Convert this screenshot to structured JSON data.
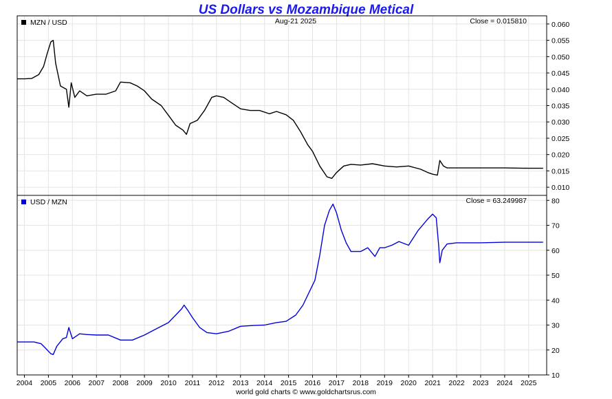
{
  "title": "US Dollars vs Mozambique Metical",
  "date": "Aug-21  2025",
  "footer": "world gold charts © www.goldchartsrus.com",
  "colors": {
    "title": "#1a1aee",
    "series_top": "#000000",
    "series_bottom": "#0000dd",
    "grid": "#e4e4e4"
  },
  "chart_data": [
    {
      "type": "line",
      "legend": "MZN / USD",
      "close_label": "Close = 0.015810",
      "ylim": [
        0.0075,
        0.0625
      ],
      "yticks": [
        "0.060",
        "0.055",
        "0.050",
        "0.045",
        "0.040",
        "0.035",
        "0.030",
        "0.025",
        "0.020",
        "0.015",
        "0.010"
      ],
      "x": [
        2003.7,
        2004.0,
        2004.3,
        2004.6,
        2004.8,
        2004.95,
        2005.1,
        2005.2,
        2005.3,
        2005.5,
        2005.75,
        2005.85,
        2005.95,
        2006.1,
        2006.3,
        2006.6,
        2007.0,
        2007.4,
        2007.8,
        2008.0,
        2008.4,
        2008.7,
        2009.0,
        2009.3,
        2009.7,
        2010.0,
        2010.3,
        2010.6,
        2010.75,
        2010.9,
        2011.2,
        2011.5,
        2011.8,
        2012.0,
        2012.3,
        2012.6,
        2013.0,
        2013.4,
        2013.8,
        2014.2,
        2014.5,
        2014.9,
        2015.2,
        2015.5,
        2015.8,
        2016.0,
        2016.3,
        2016.6,
        2016.8,
        2017.0,
        2017.3,
        2017.6,
        2018.0,
        2018.5,
        2019.0,
        2019.5,
        2020.0,
        2020.5,
        2020.8,
        2021.0,
        2021.2,
        2021.3,
        2021.45,
        2021.6,
        2022.0,
        2023.0,
        2024.0,
        2025.0,
        2025.6
      ],
      "values": [
        0.0432,
        0.0432,
        0.0433,
        0.0445,
        0.047,
        0.051,
        0.0545,
        0.055,
        0.048,
        0.041,
        0.04,
        0.0345,
        0.042,
        0.0375,
        0.0395,
        0.038,
        0.0385,
        0.0385,
        0.0395,
        0.0422,
        0.042,
        0.041,
        0.0395,
        0.037,
        0.035,
        0.032,
        0.029,
        0.0275,
        0.0262,
        0.0295,
        0.0305,
        0.0335,
        0.0375,
        0.038,
        0.0375,
        0.036,
        0.034,
        0.0335,
        0.0335,
        0.0325,
        0.0332,
        0.0322,
        0.0305,
        0.027,
        0.023,
        0.021,
        0.0165,
        0.0132,
        0.0127,
        0.0145,
        0.0165,
        0.017,
        0.0168,
        0.0172,
        0.0165,
        0.0162,
        0.0165,
        0.0155,
        0.0145,
        0.014,
        0.0137,
        0.0182,
        0.0165,
        0.0159,
        0.0159,
        0.0159,
        0.0159,
        0.0158,
        0.0158
      ]
    },
    {
      "type": "line",
      "legend": "USD / MZN",
      "close_label": "Close = 63.249987",
      "ylim": [
        10,
        82
      ],
      "yticks": [
        "80",
        "70",
        "60",
        "50",
        "40",
        "30",
        "20",
        "10"
      ],
      "x": [
        2003.7,
        2004.0,
        2004.4,
        2004.7,
        2004.9,
        2005.1,
        2005.2,
        2005.35,
        2005.6,
        2005.75,
        2005.85,
        2006.0,
        2006.3,
        2006.6,
        2007.0,
        2007.5,
        2008.0,
        2008.5,
        2009.0,
        2009.5,
        2010.0,
        2010.3,
        2010.55,
        2010.65,
        2010.8,
        2011.0,
        2011.3,
        2011.6,
        2012.0,
        2012.5,
        2013.0,
        2013.5,
        2014.0,
        2014.5,
        2014.9,
        2015.3,
        2015.6,
        2015.9,
        2016.1,
        2016.3,
        2016.5,
        2016.7,
        2016.85,
        2017.0,
        2017.2,
        2017.4,
        2017.6,
        2018.0,
        2018.3,
        2018.6,
        2018.8,
        2019.0,
        2019.3,
        2019.6,
        2020.0,
        2020.4,
        2020.8,
        2021.0,
        2021.15,
        2021.25,
        2021.3,
        2021.4,
        2021.6,
        2022.0,
        2023.0,
        2024.0,
        2025.0,
        2025.6
      ],
      "values": [
        23.2,
        23.2,
        23.2,
        22.5,
        20.5,
        18.5,
        18.2,
        21.5,
        24.5,
        25.0,
        29.0,
        24.5,
        26.5,
        26.2,
        26.0,
        26.0,
        24.0,
        24.0,
        26.0,
        28.5,
        31.0,
        34.0,
        36.5,
        38.0,
        36.0,
        33.0,
        29.0,
        27.0,
        26.5,
        27.5,
        29.5,
        29.8,
        30.0,
        31.0,
        31.5,
        34.0,
        38.0,
        44.0,
        48.0,
        58.0,
        70.0,
        76.0,
        78.5,
        75.0,
        68.0,
        63.0,
        59.5,
        59.5,
        61.0,
        57.5,
        61.0,
        61.0,
        62.0,
        63.5,
        62.0,
        68.0,
        72.5,
        74.5,
        73.0,
        62.0,
        55.0,
        60.0,
        62.5,
        63.0,
        63.0,
        63.2,
        63.2,
        63.2
      ]
    }
  ],
  "x_ticks": [
    "2004",
    "2005",
    "2006",
    "2007",
    "2008",
    "2009",
    "2010",
    "2011",
    "2012",
    "2013",
    "2014",
    "2015",
    "2016",
    "2017",
    "2018",
    "2019",
    "2020",
    "2021",
    "2022",
    "2023",
    "2024",
    "2025"
  ],
  "x_range": [
    2003.7,
    2025.75
  ]
}
